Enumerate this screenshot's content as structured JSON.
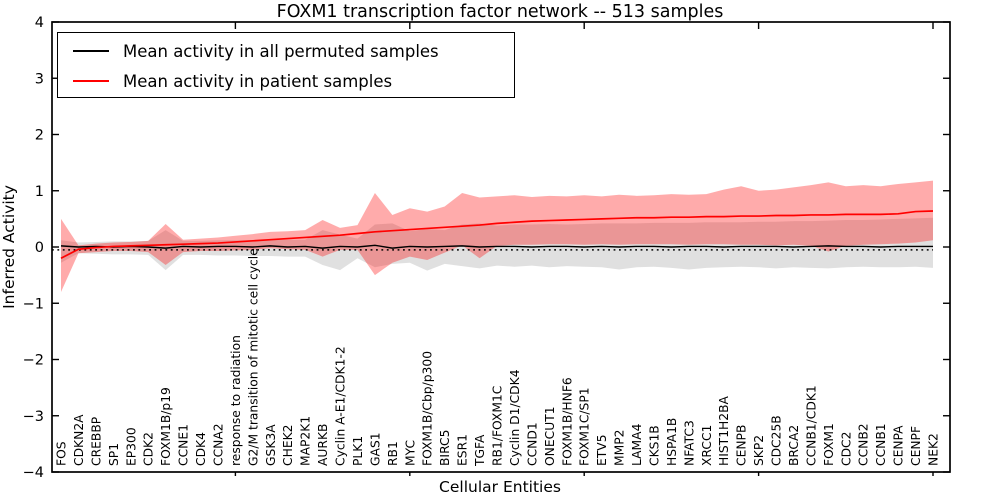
{
  "title": "FOXM1 transcription factor network -- 513 samples",
  "legend": {
    "position": "upper left",
    "items": [
      {
        "label": "Mean activity in all permuted samples",
        "color": "#000000"
      },
      {
        "label": "Mean activity in patient samples",
        "color": "#ff0000"
      }
    ]
  },
  "chart_data": {
    "type": "line",
    "title": "FOXM1 transcription factor network -- 513 samples",
    "xlabel": "Cellular Entities",
    "ylabel": "Inferred Activity",
    "ylim": [
      -4,
      4
    ],
    "yticks": [
      4,
      3,
      2,
      1,
      0,
      -1,
      -2,
      -3,
      -4
    ],
    "x_major_tick_indices": [
      10,
      20,
      30,
      40,
      50
    ],
    "grid": false,
    "legend_position": "upper left",
    "reference_line": {
      "style": "dotted",
      "color": "#000000",
      "y": -0.05
    },
    "colors": {
      "patient_line": "#ff0000",
      "permuted_line": "#000000",
      "patient_band": "#ff0000",
      "patient_band_opacity": 0.33,
      "permuted_band": "#bbbbbb",
      "permuted_band_opacity": 0.45
    },
    "categories": [
      "FOS",
      "CDKN2A",
      "CREBBP",
      "SP1",
      "EP300",
      "CDK2",
      "FOXM1B/p19",
      "CCNE1",
      "CDK4",
      "CCNA2",
      "response to radiation",
      "G2/M transition of mitotic cell cycle",
      "GSK3A",
      "CHEK2",
      "MAP2K1",
      "AURKB",
      "Cyclin A-E1/CDK1-2",
      "PLK1",
      "GAS1",
      "RB1",
      "MYC",
      "FOXM1B/Cbp/p300",
      "BIRC5",
      "ESR1",
      "TGFA",
      "RB1/FOXM1C",
      "Cyclin D1/CDK4",
      "CCND1",
      "ONECUT1",
      "FOXM1B/HNF6",
      "FOXM1C/SP1",
      "ETV5",
      "MMP2",
      "LAMA4",
      "CKS1B",
      "HSPA1B",
      "NFATC3",
      "XRCC1",
      "HIST1H2BA",
      "CENPB",
      "SKP2",
      "CDC25B",
      "BRCA2",
      "CCNB1/CDK1",
      "FOXM1",
      "CDC2",
      "CCNB2",
      "CCNB1",
      "CENPA",
      "CENPF",
      "NEK2"
    ],
    "series": [
      {
        "name": "Permuted samples band",
        "kind": "band",
        "color": "#bbbbbb",
        "opacity": 0.45,
        "upper": [
          0.12,
          0.08,
          0.09,
          0.1,
          0.1,
          0.11,
          0.3,
          0.11,
          0.11,
          0.12,
          0.12,
          0.12,
          0.12,
          0.13,
          0.13,
          0.3,
          0.22,
          0.15,
          0.4,
          0.42,
          0.28,
          0.32,
          0.3,
          0.4,
          0.42,
          0.38,
          0.4,
          0.4,
          0.41,
          0.4,
          0.41,
          0.42,
          0.42,
          0.42,
          0.43,
          0.43,
          0.43,
          0.44,
          0.44,
          0.44,
          0.45,
          0.45,
          0.46,
          0.46,
          0.47,
          0.48,
          0.48,
          0.49,
          0.5,
          0.51,
          0.52
        ],
        "lower": [
          -0.28,
          -0.11,
          -0.12,
          -0.13,
          -0.13,
          -0.14,
          -0.41,
          -0.14,
          -0.14,
          -0.15,
          -0.15,
          -0.16,
          -0.16,
          -0.17,
          -0.17,
          -0.32,
          -0.41,
          -0.2,
          -0.36,
          -0.3,
          -0.28,
          -0.42,
          -0.3,
          -0.34,
          -0.38,
          -0.33,
          -0.35,
          -0.33,
          -0.36,
          -0.34,
          -0.35,
          -0.36,
          -0.4,
          -0.36,
          -0.35,
          -0.37,
          -0.4,
          -0.37,
          -0.36,
          -0.35,
          -0.36,
          -0.38,
          -0.36,
          -0.37,
          -0.38,
          -0.36,
          -0.35,
          -0.36,
          -0.36,
          -0.35,
          -0.37
        ]
      },
      {
        "name": "Patient samples band",
        "kind": "band",
        "color": "#ff0000",
        "opacity": 0.33,
        "upper": [
          0.5,
          0.03,
          0.06,
          0.08,
          0.09,
          0.11,
          0.41,
          0.13,
          0.15,
          0.17,
          0.2,
          0.23,
          0.27,
          0.28,
          0.3,
          0.48,
          0.34,
          0.39,
          0.96,
          0.57,
          0.69,
          0.63,
          0.72,
          0.96,
          0.88,
          0.9,
          0.92,
          0.89,
          0.91,
          0.9,
          0.92,
          0.9,
          0.93,
          0.91,
          0.92,
          0.94,
          0.93,
          0.94,
          1.02,
          1.08,
          1.0,
          1.02,
          1.06,
          1.1,
          1.15,
          1.08,
          1.1,
          1.08,
          1.12,
          1.15,
          1.18
        ],
        "lower": [
          -0.8,
          -0.11,
          -0.09,
          -0.07,
          -0.07,
          -0.09,
          -0.32,
          -0.09,
          -0.07,
          -0.07,
          -0.06,
          -0.05,
          -0.02,
          -0.04,
          -0.05,
          -0.17,
          -0.05,
          -0.05,
          -0.5,
          -0.28,
          -0.17,
          -0.23,
          -0.1,
          0.03,
          -0.2,
          0.02,
          0.04,
          0.04,
          0.05,
          0.05,
          0.04,
          0.05,
          0.04,
          0.05,
          0.05,
          0.05,
          0.04,
          0.05,
          0.05,
          0.04,
          0.04,
          0.03,
          0.04,
          0.02,
          -0.08,
          0.02,
          0.04,
          0.05,
          0.06,
          0.08,
          0.12
        ]
      },
      {
        "name": "Mean activity in all permuted samples",
        "kind": "line",
        "color": "#000000",
        "values": [
          0.02,
          0.0,
          0.01,
          0.0,
          0.01,
          0.0,
          -0.02,
          0.01,
          0.0,
          0.01,
          0.01,
          0.0,
          0.02,
          0.0,
          0.01,
          -0.02,
          0.01,
          0.0,
          0.03,
          -0.02,
          0.01,
          0.0,
          0.01,
          0.02,
          0.0,
          0.01,
          0.01,
          0.0,
          0.01,
          0.01,
          0.0,
          0.01,
          0.0,
          0.01,
          0.01,
          0.0,
          0.01,
          0.01,
          0.0,
          0.01,
          0.01,
          0.01,
          0.0,
          0.01,
          0.02,
          0.01,
          0.01,
          0.0,
          0.01,
          0.01,
          0.01
        ]
      },
      {
        "name": "Mean activity in patient samples",
        "kind": "line",
        "color": "#ff0000",
        "values": [
          -0.2,
          -0.04,
          -0.01,
          0.01,
          0.02,
          0.03,
          0.04,
          0.05,
          0.06,
          0.07,
          0.09,
          0.11,
          0.13,
          0.15,
          0.17,
          0.19,
          0.21,
          0.24,
          0.27,
          0.29,
          0.31,
          0.33,
          0.35,
          0.37,
          0.39,
          0.42,
          0.44,
          0.46,
          0.47,
          0.48,
          0.49,
          0.5,
          0.51,
          0.52,
          0.52,
          0.53,
          0.53,
          0.54,
          0.54,
          0.55,
          0.55,
          0.56,
          0.56,
          0.57,
          0.57,
          0.58,
          0.58,
          0.58,
          0.59,
          0.63,
          0.64
        ]
      }
    ]
  }
}
